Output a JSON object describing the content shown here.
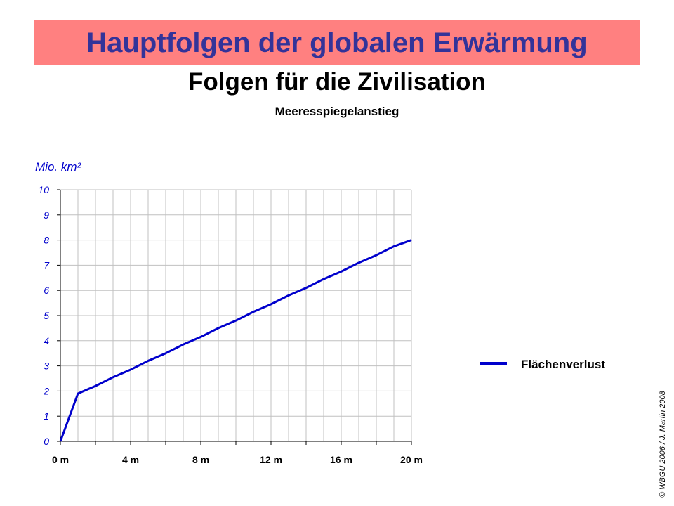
{
  "slide": {
    "title": "Hauptfolgen der globalen Erwärmung",
    "subtitle": "Folgen für die Zivilisation",
    "copyright": "© WBGU 2006  /  J. Martin 2008"
  },
  "colors": {
    "banner": "#ff8080",
    "title": "#333399",
    "series": "#0000cc",
    "axis_label": "#0000cc",
    "grid": "#c0c0c0"
  },
  "chart_data": {
    "type": "line",
    "title": "Meeresspiegelanstieg",
    "ylabel": "Mio. km²",
    "xlabel": "",
    "xlim": [
      0,
      20
    ],
    "ylim": [
      0,
      10
    ],
    "x_ticks": [
      0,
      4,
      8,
      12,
      16,
      20
    ],
    "x_tick_labels": [
      "0 m",
      "4 m",
      "8 m",
      "12 m",
      "16 m",
      "20 m"
    ],
    "y_ticks": [
      0,
      1,
      2,
      3,
      4,
      5,
      6,
      7,
      8,
      9,
      10
    ],
    "y_tick_labels": [
      "0",
      "1",
      "2",
      "3",
      "4",
      "5",
      "6",
      "7",
      "8",
      "9",
      "10"
    ],
    "grid": true,
    "legend_position": "right",
    "series": [
      {
        "name": "Flächenverlust",
        "x": [
          0,
          1,
          2,
          3,
          4,
          5,
          6,
          7,
          8,
          9,
          10,
          11,
          12,
          13,
          14,
          15,
          16,
          17,
          18,
          19,
          20
        ],
        "y": [
          0,
          1.9,
          2.2,
          2.55,
          2.85,
          3.2,
          3.5,
          3.85,
          4.15,
          4.5,
          4.8,
          5.15,
          5.45,
          5.8,
          6.1,
          6.45,
          6.75,
          7.1,
          7.4,
          7.75,
          8.0
        ]
      }
    ]
  }
}
